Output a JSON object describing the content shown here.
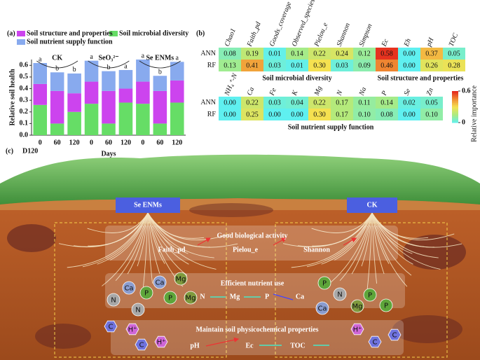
{
  "panel_labels": {
    "a": "(a)",
    "b": "(b)",
    "c": "(c)"
  },
  "chart_data": [
    {
      "type": "bar",
      "stacked": true,
      "ylabel": "Relative soil health",
      "xlabel": "Days",
      "categories": [
        "0",
        "60",
        "120",
        "0",
        "60",
        "120",
        "0",
        "60",
        "120"
      ],
      "groups": [
        {
          "name": "CK",
          "letters": [
            "a",
            "b",
            "b"
          ]
        },
        {
          "name": "SeO₃²⁻",
          "letters": [
            "a",
            "b",
            "a"
          ]
        },
        {
          "name": "Se ENMs",
          "letters": [
            "a",
            "b",
            "a"
          ]
        }
      ],
      "series": [
        {
          "name": "Soil microbial diversity",
          "color": "#66dd66",
          "values": [
            0.26,
            0.1,
            0.2,
            0.27,
            0.1,
            0.28,
            0.27,
            0.1,
            0.28
          ]
        },
        {
          "name": "Soil structure and properties",
          "color": "#cc44ee",
          "values": [
            0.18,
            0.28,
            0.16,
            0.19,
            0.28,
            0.12,
            0.19,
            0.28,
            0.19
          ]
        },
        {
          "name": "Soil nutrient supply function",
          "color": "#88aaee",
          "values": [
            0.18,
            0.16,
            0.17,
            0.18,
            0.17,
            0.16,
            0.19,
            0.13,
            0.16
          ]
        }
      ],
      "ylim": [
        0,
        0.65
      ],
      "yticks": [
        {
          "value": 0,
          "label": "0.0"
        },
        0.1,
        0.2,
        0.3,
        0.4,
        0.5,
        0.6
      ]
    },
    {
      "type": "heatmap",
      "x": [
        "Chao1",
        "Faith_pd",
        "Goods_coverage",
        "Observed_species",
        "Pielou_e",
        "Shannon",
        "Simpson",
        "Ec",
        "Eh",
        "pH",
        "TOC"
      ],
      "y": [
        "ANN",
        "RF"
      ],
      "values": [
        [
          0.08,
          0.19,
          0.01,
          0.14,
          0.22,
          0.24,
          0.12,
          0.58,
          0.0,
          0.37,
          0.05
        ],
        [
          0.13,
          0.41,
          0.03,
          0.01,
          0.3,
          0.03,
          0.09,
          0.46,
          0.0,
          0.26,
          0.28
        ]
      ],
      "value_labels": [
        [
          "0.08",
          "0.19",
          "0.01",
          "0.14",
          "0.22",
          "0.24",
          "0.12",
          "0.58",
          "0.00",
          "0.37",
          "0.05"
        ],
        [
          "0.13",
          "0.41",
          "0.03",
          "0.01",
          "0.30",
          "0.03",
          "0.09",
          "0.46",
          "0.00",
          "0.26",
          "0.28"
        ]
      ],
      "column_groups": [
        {
          "name": "Soil microbial diversity",
          "count": 7
        },
        {
          "name": "Soil structure and properties",
          "count": 4
        }
      ],
      "clim": [
        0,
        0.6
      ]
    },
    {
      "type": "heatmap",
      "x": [
        "NH₄⁺-N",
        "Ca",
        "Fe",
        "K",
        "Mg",
        "N",
        "Na",
        "P",
        "Se",
        "Zn"
      ],
      "y": [
        "ANN",
        "RF"
      ],
      "values": [
        [
          0.0,
          0.22,
          0.03,
          0.04,
          0.22,
          0.17,
          0.11,
          0.14,
          0.02,
          0.05
        ],
        [
          0.0,
          0.25,
          0.0,
          0.0,
          0.3,
          0.17,
          0.1,
          0.08,
          0.0,
          0.1
        ]
      ],
      "value_labels": [
        [
          "0.00",
          "0.22",
          "0.03",
          "0.04",
          "0.22",
          "0.17",
          "0.11",
          "0.14",
          "0.02",
          "0.05"
        ],
        [
          "0.00",
          "0.25",
          "0.00",
          "0.00",
          "0.30",
          "0.17",
          "0.10",
          "0.08",
          "0.00",
          "0.10"
        ]
      ],
      "column_groups": [
        {
          "name": "Soil nutrient supply function",
          "count": 10
        }
      ],
      "clim": [
        0,
        0.6
      ],
      "colorbar": {
        "label": "Relative importance",
        "ticks": [
          0,
          0.6
        ]
      }
    }
  ],
  "illustration": {
    "stage": "D120",
    "treatments": [
      "Se ENMs",
      "CK"
    ],
    "boxes": [
      {
        "title": "Good biological activity",
        "items": [
          "Faith_pd",
          "Pielou_e",
          "Shannon"
        ]
      },
      {
        "title": "Efficient nutrient use",
        "items": [
          "N",
          "Mg",
          "P",
          "Ca"
        ]
      },
      {
        "title": "Maintain soil physicochemical properties",
        "items": [
          "pH",
          "Ec",
          "TOC"
        ]
      }
    ],
    "particles": [
      "Ca",
      "Ca",
      "Mg",
      "P",
      "P",
      "Mg",
      "N",
      "N",
      "P",
      "N",
      "Ca",
      "Mg",
      "P",
      "P",
      "C",
      "H⁺",
      "C",
      "H⁺",
      "H⁺",
      "C",
      "C"
    ]
  }
}
